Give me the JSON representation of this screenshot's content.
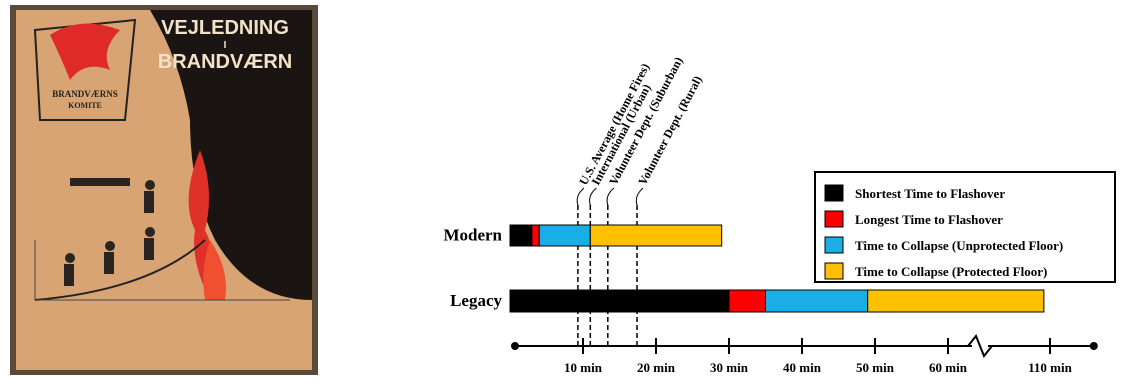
{
  "cover": {
    "title": [
      "VEJLEDNING",
      "I",
      "BRANDVÆRN"
    ],
    "emblem": [
      "BRANDVÆRNS",
      "KOMITE"
    ]
  },
  "chart_data": {
    "type": "bar",
    "orientation": "horizontal",
    "stacked": true,
    "categories": [
      "Modern",
      "Legacy"
    ],
    "series": [
      {
        "name": "Shortest Time to Flashover",
        "color": "#000000",
        "values": [
          3,
          30
        ]
      },
      {
        "name": "Longest Time to Flashover",
        "color": "#ff0000",
        "values": [
          1,
          5
        ]
      },
      {
        "name": "Time to Collapse (Unprotected Floor)",
        "color": "#1aaee6",
        "values": [
          7,
          14
        ]
      },
      {
        "name": "Time to Collapse (Protected Floor)",
        "color": "#ffc000",
        "values": [
          18,
          58
        ]
      }
    ],
    "xlim": [
      0,
      116
    ],
    "xbreak": [
      60,
      110
    ],
    "xticks": [
      {
        "value": 10,
        "label": "10 min"
      },
      {
        "value": 20,
        "label": "20 min"
      },
      {
        "value": 30,
        "label": "30 min"
      },
      {
        "value": 40,
        "label": "40 min"
      },
      {
        "value": 50,
        "label": "50 min"
      },
      {
        "value": 60,
        "label": "60 min"
      },
      {
        "value": 110,
        "label": "110 min"
      }
    ],
    "annotations": [
      {
        "label": "U.S. Average (Home Fires)",
        "value": 9.3
      },
      {
        "label": "International (Urban)",
        "value": 11
      },
      {
        "label": "Volunteer Dept. (Suburban)",
        "value": 13.4
      },
      {
        "label": "Volunteer Dept. (Rural)",
        "value": 17.4
      }
    ],
    "legend": "upper right"
  }
}
